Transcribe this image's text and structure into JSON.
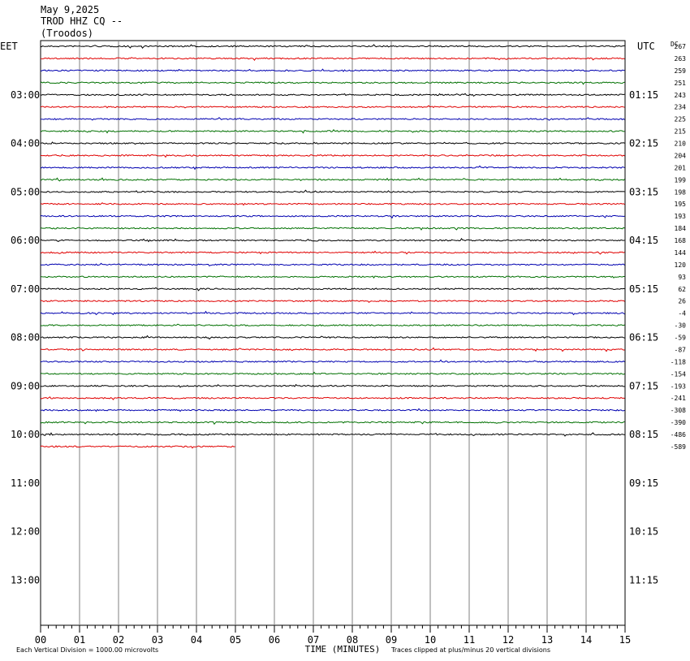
{
  "header": {
    "date": "May 9,2025",
    "station": "TROD HHZ CQ --",
    "location": "(Troodos)"
  },
  "chart_data": {
    "type": "helicorder",
    "left_zone_label": "EET",
    "right_zone_label": "UTC",
    "dc_label": "DC",
    "left_hour_labels": [
      "03:00",
      "04:00",
      "05:00",
      "06:00",
      "07:00",
      "08:00",
      "09:00",
      "10:00",
      "11:00",
      "12:00",
      "13:00"
    ],
    "right_hour_labels": [
      "01:15",
      "02:15",
      "03:15",
      "04:15",
      "05:15",
      "06:15",
      "07:15",
      "08:15",
      "09:15",
      "10:15",
      "11:15"
    ],
    "x_ticks": [
      "00",
      "01",
      "02",
      "03",
      "04",
      "05",
      "06",
      "07",
      "08",
      "09",
      "10",
      "11",
      "12",
      "13",
      "14",
      "15"
    ],
    "x_range_minutes": [
      0,
      15
    ],
    "xlabel": "TIME (MINUTES)",
    "total_rows": 48,
    "rows_per_hour": 4,
    "first_trace_row": 0,
    "last_trace_row": 33,
    "last_row_end_minute": 5.0,
    "trace_colors": [
      "#000000",
      "#e00000",
      "#0000b0",
      "#007000"
    ],
    "dc_offsets": [
      "267",
      "263",
      "259",
      "251",
      "243",
      "234",
      "225",
      "215",
      "210",
      "204",
      "201",
      "199",
      "198",
      "195",
      "193",
      "184",
      "168",
      "144",
      "120",
      "93",
      "62",
      "26",
      "-4",
      "-30",
      "-59",
      "-87",
      "-118",
      "-154",
      "-193",
      "-241",
      "-308",
      "-390",
      "-486",
      "-589"
    ],
    "footer_left": "Each Vertical Division = 1000.00 microvolts",
    "footer_right": "Traces clipped at plus/minus 20 vertical divisions",
    "grid": true
  }
}
